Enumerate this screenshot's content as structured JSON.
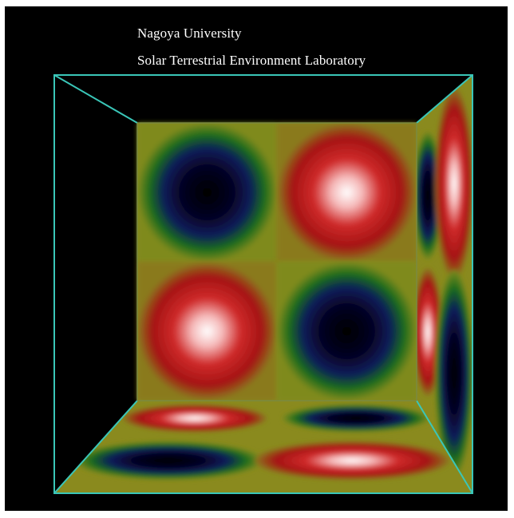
{
  "caption": {
    "line1": "Nagoya University",
    "line2": "Solar  Terrestrial Environment Laboratory"
  },
  "colors": {
    "background": "#000000",
    "edge": "#3ac6b8",
    "olive": "#8a8a1e",
    "green": "#1a6b1a",
    "navy": "#05053a",
    "red": "#b00e0e",
    "white": "#ffffff"
  }
}
